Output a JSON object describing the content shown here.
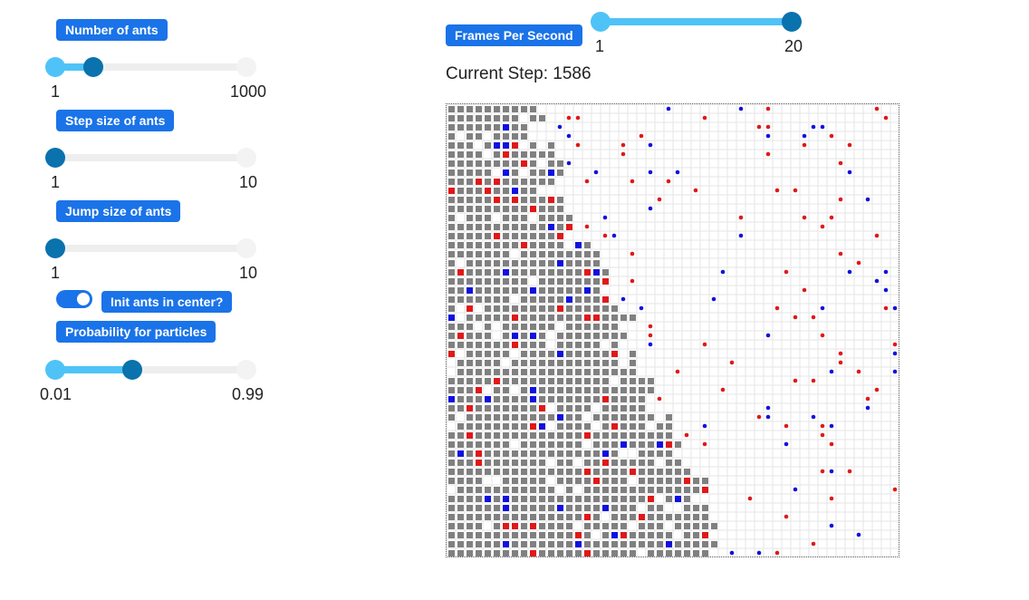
{
  "controls": {
    "ants": {
      "label": "Number of ants",
      "min_label": "1",
      "max_label": "1000",
      "value_fraction": 0.2
    },
    "step": {
      "label": "Step size of ants",
      "min_label": "1",
      "max_label": "10",
      "value_fraction": 0.0
    },
    "jump": {
      "label": "Jump size of ants",
      "min_label": "1",
      "max_label": "10",
      "value_fraction": 0.0
    },
    "center": {
      "label": "Init ants in center?",
      "checked": true
    },
    "prob": {
      "label": "Probability for particles",
      "min_label": "0.01",
      "max_label": "0.99",
      "value_fraction": 0.4
    }
  },
  "fps": {
    "label": "Frames Per Second",
    "min_label": "1",
    "max_label": "20",
    "value_fraction": 1.0
  },
  "status": {
    "current_step": "Current Step: 1586"
  },
  "colors": {
    "accent": "#1a73e8",
    "slider_fill": "#4fc3f7",
    "slider_thumb": "#0a72ad",
    "filled_cell": "#808080",
    "red_particle": "#e01818",
    "blue_particle": "#1010e0",
    "grid_line": "#e6e6e6"
  },
  "grid": {
    "columns": 50,
    "rows": 50
  }
}
